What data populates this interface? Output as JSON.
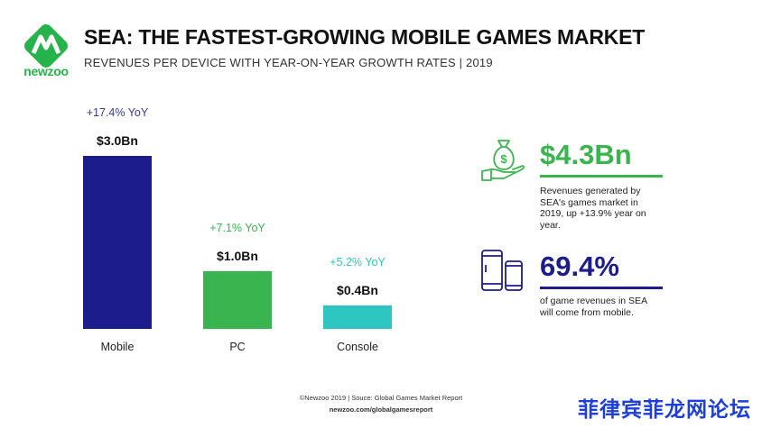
{
  "header": {
    "brand": "newzoo",
    "title": "SEA: THE FASTEST-GROWING MOBILE GAMES MARKET",
    "subtitle": "REVENUES PER DEVICE WITH YEAR-ON-YEAR GROWTH RATES | 2019"
  },
  "chart_data": {
    "type": "bar",
    "title": "SEA: THE FASTEST-GROWING MOBILE GAMES MARKET",
    "subtitle": "REVENUES PER DEVICE WITH YEAR-ON-YEAR GROWTH RATES | 2019",
    "categories": [
      "Mobile",
      "PC",
      "Console"
    ],
    "values": [
      3.0,
      1.0,
      0.4
    ],
    "value_labels": [
      "$3.0Bn",
      "$1.0Bn",
      "$0.4Bn"
    ],
    "growth_labels": [
      "+17.4% YoY",
      "+7.1% YoY",
      "+5.2% YoY"
    ],
    "colors": [
      "#1c1c8c",
      "#3ab44e",
      "#2ec6c0"
    ],
    "growth_colors": [
      "#3a3a9a",
      "#3ab44e",
      "#2ec6c0"
    ],
    "xlabel": "",
    "ylabel": "",
    "ylim": [
      0,
      3.0
    ],
    "grid": false
  },
  "stats": [
    {
      "value": "$4.3Bn",
      "description": "Revenues generated by SEA's games market in 2019, up +13.9% year on year.",
      "color": "#3ab44e",
      "icon": "money-bag-hand-icon"
    },
    {
      "value": "69.4%",
      "description": "of game revenues in SEA will come from mobile.",
      "color": "#1c1c8c",
      "icon": "mobile-devices-icon"
    }
  ],
  "footer": {
    "source": "©Newzoo 2019 | Souce: Global Games Market Report",
    "url": "newzoo.com/globalgamesreport"
  },
  "watermark": "菲律宾菲龙网论坛"
}
